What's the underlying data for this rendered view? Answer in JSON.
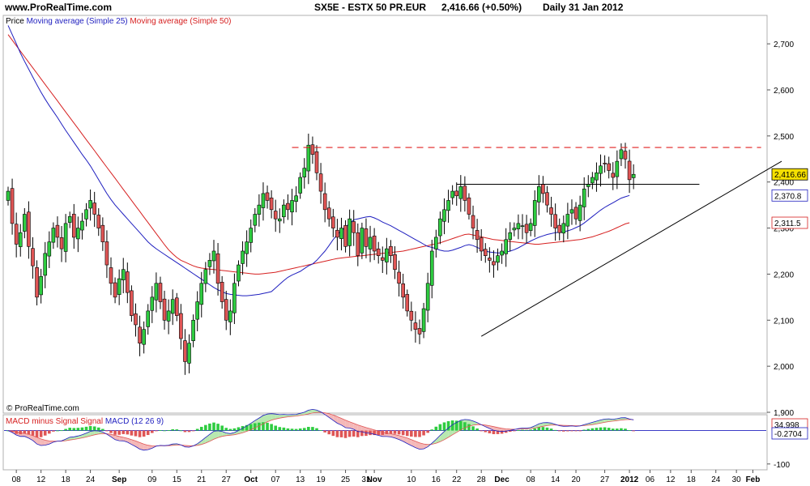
{
  "header": {
    "site": "www.ProRealTime.com",
    "instrument": "SX5E - ESTX 50 PR.EUR",
    "last": "2,416.66 (+0.50%)",
    "period": "Daily  31 Jan 2012"
  },
  "watermark": "© ProRealTime.com",
  "price_legend": {
    "price": "Price",
    "ma25": "Moving average (Simple 25)",
    "ma50": "Moving average (Simple 50)"
  },
  "macd_legend": {
    "hist": "MACD minus Signal Signal",
    "macd": "MACD (12 26 9)"
  },
  "colors": {
    "up_candle": "#2ecc40",
    "down_candle": "#e05555",
    "ma25": "#1f1fbf",
    "ma50": "#d62020",
    "resistance": "#e02020",
    "last_badge": "#f5e000",
    "macd_up": "#2ecc40",
    "macd_down": "#e05555"
  },
  "chart_data": [
    {
      "type": "candlestick",
      "panel": "price",
      "ylim": [
        1900,
        2760
      ],
      "y_ticks": [
        "2,700",
        "2,600",
        "2,500",
        "2,400",
        "2,300",
        "2,200",
        "2,100",
        "2,000",
        "1,900"
      ],
      "y_tick_values": [
        2700,
        2600,
        2500,
        2400,
        2300,
        2200,
        2100,
        2000,
        1900
      ],
      "last_values": [
        {
          "label": "2,416.66",
          "value": 2416.66,
          "series": "price"
        },
        {
          "label": "2,370.8",
          "value": 2370.8,
          "series": "ma25"
        },
        {
          "label": "2,311.5",
          "value": 2311.5,
          "series": "ma50"
        }
      ],
      "closes": [
        2380,
        2310,
        2265,
        2290,
        2330,
        2260,
        2218,
        2150,
        2195,
        2245,
        2270,
        2300,
        2280,
        2255,
        2310,
        2325,
        2280,
        2300,
        2315,
        2340,
        2360,
        2330,
        2300,
        2270,
        2220,
        2180,
        2150,
        2190,
        2210,
        2160,
        2110,
        2090,
        2050,
        2080,
        2120,
        2150,
        2180,
        2140,
        2100,
        2120,
        2145,
        2110,
        2060,
        2010,
        2050,
        2100,
        2140,
        2180,
        2210,
        2230,
        2250,
        2180,
        2140,
        2100,
        2120,
        2180,
        2220,
        2250,
        2270,
        2300,
        2330,
        2350,
        2375,
        2360,
        2340,
        2320,
        2320,
        2350,
        2340,
        2360,
        2370,
        2410,
        2430,
        2480,
        2460,
        2420,
        2380,
        2340,
        2320,
        2300,
        2280,
        2300,
        2260,
        2320,
        2290,
        2240,
        2300,
        2260,
        2280,
        2250,
        2240,
        2230,
        2255,
        2240,
        2210,
        2180,
        2150,
        2120,
        2100,
        2080,
        2070,
        2125,
        2180,
        2250,
        2280,
        2320,
        2340,
        2360,
        2380,
        2370,
        2390,
        2360,
        2330,
        2300,
        2275,
        2250,
        2240,
        2230,
        2220,
        2240,
        2250,
        2275,
        2290,
        2300,
        2310,
        2305,
        2290,
        2310,
        2360,
        2390,
        2375,
        2350,
        2330,
        2300,
        2290,
        2310,
        2330,
        2340,
        2320,
        2350,
        2385,
        2395,
        2410,
        2420,
        2435,
        2440,
        2425,
        2410,
        2445,
        2470,
        2450,
        2405,
        2416.66
      ],
      "ma25": [
        2740,
        2720,
        2700,
        2680,
        2662,
        2645,
        2628,
        2611,
        2595,
        2580,
        2566,
        2553,
        2540,
        2526,
        2512,
        2499,
        2486,
        2473,
        2460,
        2448,
        2435,
        2420,
        2405,
        2390,
        2375,
        2362,
        2350,
        2340,
        2330,
        2320,
        2310,
        2300,
        2290,
        2280,
        2270,
        2262,
        2255,
        2249,
        2243,
        2237,
        2231,
        2225,
        2219,
        2213,
        2207,
        2201,
        2195,
        2189,
        2183,
        2177,
        2171,
        2166,
        2162,
        2158,
        2156,
        2155,
        2154,
        2153,
        2153,
        2154,
        2155,
        2156,
        2158,
        2160,
        2162,
        2170,
        2178,
        2186,
        2193,
        2198,
        2202,
        2206,
        2212,
        2218,
        2222,
        2230,
        2240,
        2250,
        2262,
        2275,
        2286,
        2294,
        2302,
        2310,
        2318,
        2320,
        2322,
        2324,
        2325,
        2322,
        2318,
        2313,
        2309,
        2305,
        2300,
        2295,
        2290,
        2285,
        2280,
        2275,
        2270,
        2265,
        2260,
        2258,
        2255,
        2252,
        2250,
        2250,
        2252,
        2255,
        2258,
        2262,
        2264,
        2262,
        2258,
        2254,
        2250,
        2248,
        2247,
        2246,
        2246,
        2248,
        2250,
        2253,
        2257,
        2262,
        2267,
        2272,
        2276,
        2280,
        2283,
        2286,
        2288,
        2290,
        2291,
        2292,
        2294,
        2297,
        2301,
        2305,
        2311,
        2318,
        2325,
        2332,
        2339,
        2345,
        2350,
        2355,
        2360,
        2365,
        2368,
        2370.8
      ],
      "ma50": [
        2720,
        2708,
        2696,
        2684,
        2672,
        2660,
        2648,
        2636,
        2624,
        2612,
        2600,
        2588,
        2576,
        2564,
        2552,
        2540,
        2528,
        2516,
        2504,
        2492,
        2480,
        2468,
        2456,
        2444,
        2432,
        2420,
        2408,
        2396,
        2384,
        2372,
        2360,
        2348,
        2336,
        2324,
        2312,
        2300,
        2288,
        2276,
        2264,
        2253,
        2244,
        2236,
        2230,
        2226,
        2222,
        2218,
        2215,
        2213,
        2212,
        2211,
        2210,
        2209,
        2208,
        2207,
        2206,
        2205,
        2204,
        2203,
        2202,
        2201,
        2200,
        2200,
        2201,
        2202,
        2203,
        2204,
        2206,
        2208,
        2210,
        2212,
        2214,
        2216,
        2218,
        2220,
        2222,
        2224,
        2226,
        2228,
        2230,
        2232,
        2234,
        2235,
        2236,
        2237,
        2238,
        2239,
        2240,
        2241,
        2242,
        2243,
        2244,
        2245,
        2246,
        2247,
        2248,
        2249,
        2250,
        2252,
        2254,
        2256,
        2258,
        2260,
        2262,
        2264,
        2266,
        2268,
        2271,
        2274,
        2277,
        2280,
        2283,
        2286,
        2287,
        2285,
        2283,
        2281,
        2279,
        2277,
        2275,
        2274,
        2273,
        2272,
        2271,
        2270,
        2269,
        2268,
        2267,
        2266,
        2265,
        2265,
        2266,
        2267,
        2268,
        2269,
        2270,
        2271,
        2272,
        2273,
        2274,
        2275,
        2277,
        2279,
        2281,
        2284,
        2287,
        2290,
        2293,
        2297,
        2301,
        2305,
        2309,
        2311.5
      ],
      "x_ticks": [
        {
          "label": "08",
          "i": 2
        },
        {
          "label": "12",
          "i": 8
        },
        {
          "label": "18",
          "i": 14
        },
        {
          "label": "24",
          "i": 20
        },
        {
          "label": "Sep",
          "i": 27,
          "bold": true
        },
        {
          "label": "09",
          "i": 35
        },
        {
          "label": "15",
          "i": 41
        },
        {
          "label": "21",
          "i": 47
        },
        {
          "label": "27",
          "i": 53
        },
        {
          "label": "Oct",
          "i": 59,
          "bold": true
        },
        {
          "label": "07",
          "i": 65
        },
        {
          "label": "13",
          "i": 71
        },
        {
          "label": "19",
          "i": 76
        },
        {
          "label": "25",
          "i": 82
        },
        {
          "label": "31",
          "i": 87
        },
        {
          "label": "Nov",
          "i": 89,
          "bold": true
        },
        {
          "label": "10",
          "i": 98
        },
        {
          "label": "16",
          "i": 104
        },
        {
          "label": "22",
          "i": 109
        },
        {
          "label": "28",
          "i": 115
        },
        {
          "label": "Dec",
          "i": 120,
          "bold": true
        },
        {
          "label": "08",
          "i": 127
        },
        {
          "label": "14",
          "i": 133
        },
        {
          "label": "20",
          "i": 138
        },
        {
          "label": "27",
          "i": 145
        },
        {
          "label": "2012",
          "i": 151,
          "bold": true
        },
        {
          "label": "06",
          "i": 156
        },
        {
          "label": "12",
          "i": 161
        },
        {
          "label": "18",
          "i": 166
        },
        {
          "label": "24",
          "i": 172
        },
        {
          "label": "30",
          "i": 177
        },
        {
          "label": "Feb",
          "i": 181,
          "bold": true
        }
      ],
      "resistance_level": 2475,
      "neckline_level": 2395,
      "trendline": [
        {
          "i": 115,
          "value": 2065
        },
        {
          "i": 188,
          "value": 2445
        }
      ]
    },
    {
      "type": "bar",
      "panel": "macd",
      "ylim": [
        -115,
        45
      ],
      "y_ticks": [
        "-100"
      ],
      "y_tick_values": [
        -100
      ],
      "last_values": [
        {
          "label": "34.998",
          "value": 34.998,
          "series": "macd"
        },
        {
          "label": "-0.2704",
          "value": -0.2704,
          "series": "histogram"
        }
      ]
    }
  ]
}
